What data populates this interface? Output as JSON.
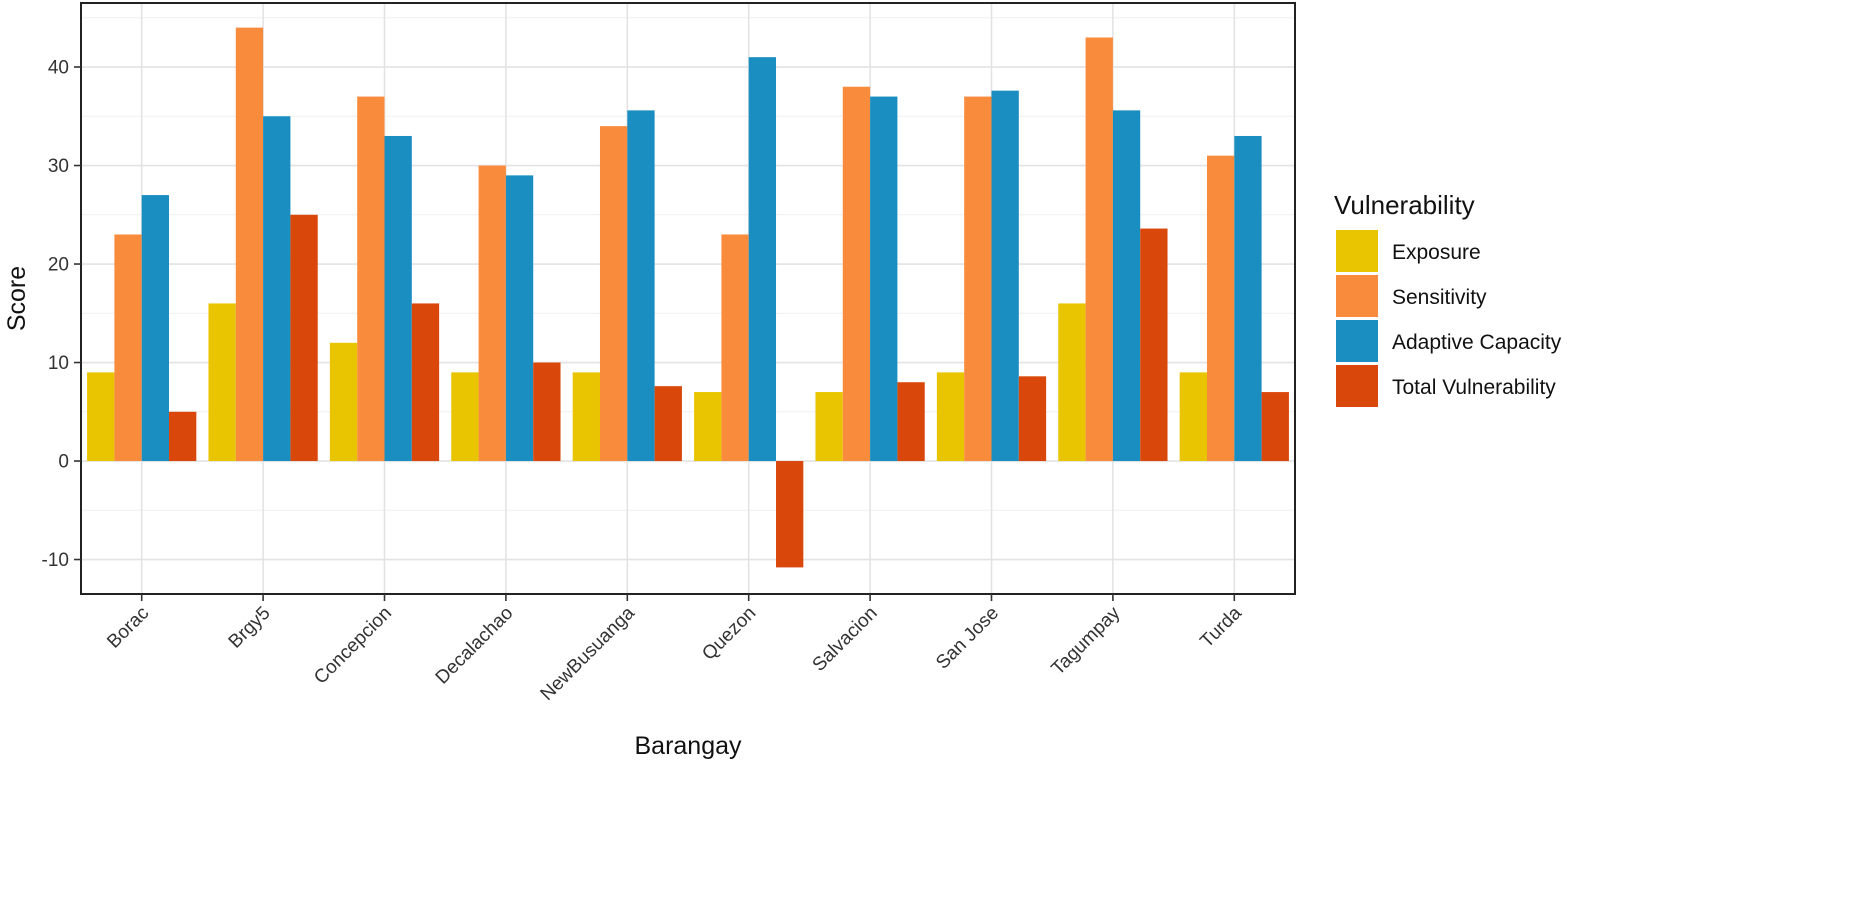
{
  "chart_data": {
    "type": "bar",
    "xlabel": "Barangay",
    "ylabel": "Score",
    "ylim": [
      -13.5,
      46.5
    ],
    "yticks": [
      -10,
      0,
      10,
      20,
      30,
      40
    ],
    "grid": true,
    "legend": {
      "title": "Vulnerability",
      "position": "right"
    },
    "categories": [
      "Borac",
      "Brgy5",
      "Concepcion",
      "Decalachao",
      "NewBusuanga",
      "Quezon",
      "Salvacion",
      "San Jose",
      "Tagumpay",
      "Turda"
    ],
    "series": [
      {
        "name": "Exposure",
        "color": "#E8C500",
        "values": [
          9,
          16,
          12,
          9,
          9,
          7,
          7,
          9,
          16,
          9
        ]
      },
      {
        "name": "Sensitivity",
        "color": "#F98B3C",
        "values": [
          23,
          44,
          37,
          30,
          34,
          23,
          38,
          37,
          43,
          31
        ]
      },
      {
        "name": "Adaptive Capacity",
        "color": "#1B8EC1",
        "values": [
          27,
          35,
          33,
          29,
          35.6,
          41,
          37,
          37.6,
          35.6,
          33
        ]
      },
      {
        "name": "Total Vulnerability",
        "color": "#D9470A",
        "values": [
          5,
          25,
          16,
          10,
          7.6,
          -10.8,
          8,
          8.6,
          23.6,
          7
        ]
      }
    ]
  }
}
